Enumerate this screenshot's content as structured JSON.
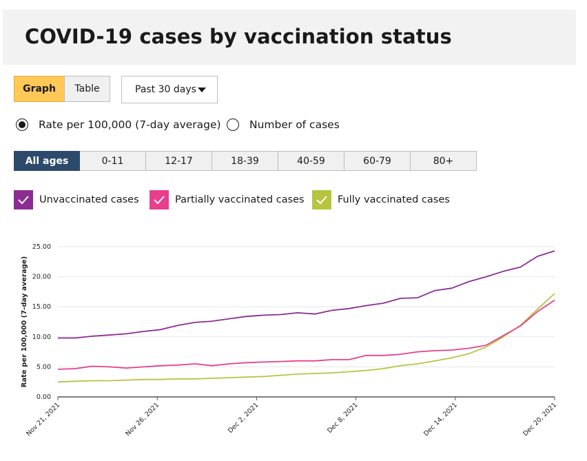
{
  "page": {
    "title": "COVID-19 cases by vaccination status"
  },
  "controls": {
    "graph_label": "Graph",
    "table_label": "Table",
    "period_label": "Past 30 days",
    "radio_rate_label": "Rate per 100,000 (7-day average)",
    "radio_count_label": "Number of cases",
    "selected_radio": "rate",
    "age_groups": [
      "All ages",
      "0-11",
      "12-17",
      "18-39",
      "40-59",
      "60-79",
      "80+"
    ],
    "selected_age": "All ages"
  },
  "legend": [
    {
      "label": "Unvaccinated cases",
      "color": "#8b2c91",
      "checked": true
    },
    {
      "label": "Partially vaccinated cases",
      "color": "#e83e8c",
      "checked": true
    },
    {
      "label": "Fully vaccinated cases",
      "color": "#b7c43f",
      "checked": true
    }
  ],
  "chart_data": {
    "type": "line",
    "title": "",
    "ylabel": "Rate per 100,000 (7-day average)",
    "xlabel": "",
    "ylim": [
      0,
      25
    ],
    "yticks": [
      "0.00",
      "5.00",
      "10.00",
      "15.00",
      "20.00",
      "25.00"
    ],
    "xtick_labels": [
      "Nov 21, 2021",
      "Nov 26, 2021",
      "Dec 2, 2021",
      "Dec 8, 2021",
      "Dec 14, 2021",
      "Dec 20, 2021"
    ],
    "xtick_index": [
      0,
      5,
      10,
      15,
      20,
      25
    ],
    "grid": true,
    "series": [
      {
        "name": "Unvaccinated cases",
        "color": "#8b2c91",
        "values": [
          9.8,
          9.8,
          10.1,
          10.3,
          10.5,
          10.9,
          11.2,
          11.9,
          12.4,
          12.6,
          13.0,
          13.4,
          13.6,
          13.7,
          14.0,
          13.8,
          14.4,
          14.7,
          15.2,
          15.6,
          16.4,
          16.5,
          17.7,
          18.1,
          19.2,
          20.0,
          20.9,
          21.6,
          23.4,
          24.3
        ]
      },
      {
        "name": "Partially vaccinated cases",
        "color": "#e83e8c",
        "values": [
          4.6,
          4.7,
          5.1,
          5.0,
          4.8,
          5.0,
          5.2,
          5.3,
          5.5,
          5.2,
          5.5,
          5.7,
          5.8,
          5.9,
          6.0,
          6.0,
          6.2,
          6.2,
          6.9,
          6.9,
          7.1,
          7.5,
          7.7,
          7.8,
          8.1,
          8.6,
          10.2,
          11.8,
          14.2,
          16.1
        ]
      },
      {
        "name": "Fully vaccinated cases",
        "color": "#b7c43f",
        "values": [
          2.5,
          2.6,
          2.7,
          2.7,
          2.8,
          2.9,
          2.9,
          3.0,
          3.0,
          3.1,
          3.2,
          3.3,
          3.4,
          3.6,
          3.8,
          3.9,
          4.0,
          4.2,
          4.4,
          4.7,
          5.2,
          5.5,
          6.0,
          6.5,
          7.2,
          8.3,
          10.0,
          11.9,
          14.6,
          17.2
        ]
      }
    ]
  }
}
